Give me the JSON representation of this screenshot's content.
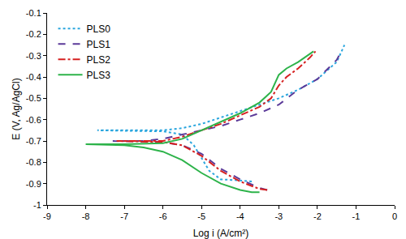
{
  "chart_data": {
    "type": "line",
    "x_label": "Log i (A/cm²)",
    "y_label": "E (V, Ag/AgCl)",
    "xlim": [
      -9,
      0
    ],
    "xticks": [
      -9,
      -8,
      -7,
      -6,
      -5,
      -4,
      -3,
      -2,
      -1,
      0
    ],
    "ylim": [
      -1,
      -0.1
    ],
    "yticks": [
      -1,
      -0.9,
      -0.8,
      -0.7,
      -0.6,
      -0.5,
      -0.4,
      -0.3,
      -0.2,
      -0.1
    ],
    "grid": false,
    "legend": "top-left",
    "series": [
      {
        "name": "PLS0",
        "color": "#2ba6de",
        "line_style": "dot",
        "x": [
          -3.7,
          -4.0,
          -4.5,
          -4.8,
          -5.0,
          -5.2,
          -5.5,
          -6.0,
          -7.7,
          -6.0,
          -5.5,
          -5.0,
          -4.5,
          -4.0,
          -3.5,
          -3.0,
          -2.5,
          -2.0,
          -1.5,
          -1.3
        ],
        "values": [
          -0.89,
          -0.885,
          -0.88,
          -0.84,
          -0.78,
          -0.72,
          -0.67,
          -0.655,
          -0.65,
          -0.65,
          -0.64,
          -0.62,
          -0.59,
          -0.56,
          -0.53,
          -0.5,
          -0.46,
          -0.41,
          -0.33,
          -0.25
        ]
      },
      {
        "name": "PLS1",
        "color": "#5b3a99",
        "line_style": "dash",
        "x": [
          -3.3,
          -3.5,
          -4.0,
          -4.5,
          -5.0,
          -5.5,
          -6.0,
          -7.3,
          -6.5,
          -6.0,
          -5.5,
          -5.0,
          -4.5,
          -4.0,
          -3.5,
          -3.0,
          -2.5,
          -2.0,
          -1.5,
          -1.35
        ],
        "values": [
          -0.93,
          -0.92,
          -0.88,
          -0.83,
          -0.76,
          -0.72,
          -0.705,
          -0.7,
          -0.7,
          -0.69,
          -0.67,
          -0.65,
          -0.63,
          -0.6,
          -0.57,
          -0.53,
          -0.46,
          -0.41,
          -0.32,
          -0.27
        ]
      },
      {
        "name": "PLS2",
        "color": "#d62020",
        "line_style": "dashdot",
        "x": [
          -3.3,
          -3.5,
          -4.0,
          -4.5,
          -5.0,
          -5.5,
          -6.0,
          -7.2,
          -6.0,
          -5.5,
          -5.0,
          -4.5,
          -4.0,
          -3.5,
          -3.2,
          -3.0,
          -2.8,
          -2.5,
          -2.2,
          -2.05
        ],
        "values": [
          -0.93,
          -0.925,
          -0.89,
          -0.84,
          -0.77,
          -0.72,
          -0.705,
          -0.7,
          -0.7,
          -0.68,
          -0.65,
          -0.62,
          -0.58,
          -0.54,
          -0.5,
          -0.44,
          -0.4,
          -0.36,
          -0.31,
          -0.28
        ]
      },
      {
        "name": "PLS3",
        "color": "#2db34a",
        "line_style": "solid",
        "x": [
          -3.5,
          -3.7,
          -4.0,
          -4.5,
          -5.0,
          -5.5,
          -6.0,
          -6.5,
          -7.0,
          -8.0,
          -7.0,
          -6.0,
          -5.5,
          -5.0,
          -4.5,
          -4.0,
          -3.5,
          -3.2,
          -3.0,
          -2.8,
          -2.5,
          -2.1
        ],
        "values": [
          -0.94,
          -0.94,
          -0.93,
          -0.9,
          -0.85,
          -0.79,
          -0.75,
          -0.73,
          -0.72,
          -0.715,
          -0.715,
          -0.71,
          -0.69,
          -0.65,
          -0.61,
          -0.57,
          -0.52,
          -0.47,
          -0.39,
          -0.36,
          -0.33,
          -0.28
        ]
      }
    ]
  }
}
